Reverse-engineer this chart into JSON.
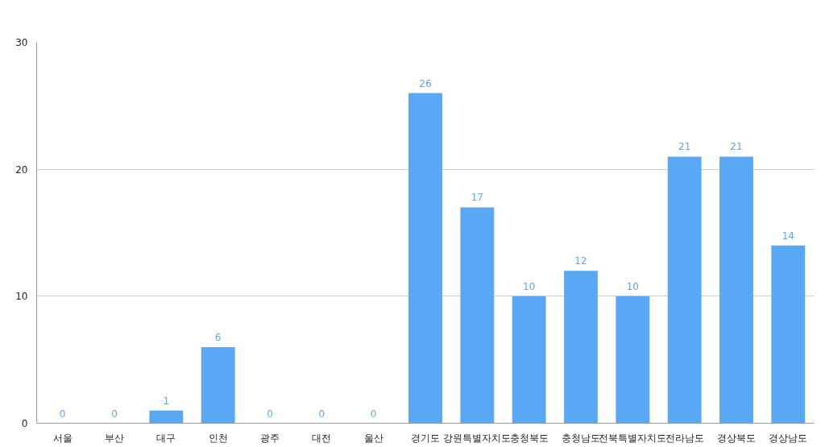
{
  "chart_data": {
    "type": "bar",
    "categories": [
      "서울",
      "부산",
      "대구",
      "인천",
      "광주",
      "대전",
      "울산",
      "경기도",
      "강원특별자치도",
      "충청북도",
      "충청남도",
      "전북특별자치도",
      "전라남도",
      "경상북도",
      "경상남도"
    ],
    "series": [
      {
        "color": "#5aa7f5",
        "values": [
          0,
          0,
          1,
          6,
          0,
          0,
          0,
          26,
          17,
          10,
          12,
          10,
          21,
          21,
          14
        ]
      }
    ],
    "ylim": [
      0,
      30
    ],
    "yticks": [
      0,
      10,
      20,
      30
    ],
    "grid": "y",
    "data_labels": true
  }
}
